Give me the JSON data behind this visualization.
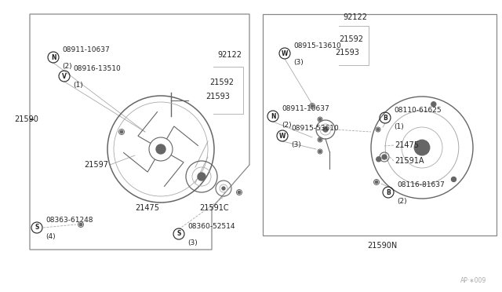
{
  "bg_color": "#ffffff",
  "line_color": "#aaaaaa",
  "dark_color": "#222222",
  "med_color": "#666666",
  "fig_width": 6.4,
  "fig_height": 3.72,
  "dpi": 100,
  "xlim": [
    0,
    640
  ],
  "ylim": [
    0,
    372
  ],
  "watermark": "AP·∗009"
}
